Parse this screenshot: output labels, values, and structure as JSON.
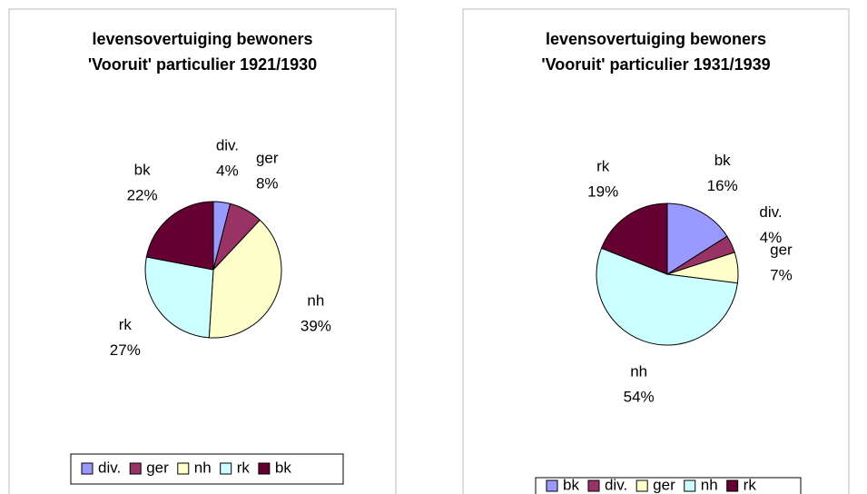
{
  "chart_data": [
    {
      "type": "pie",
      "title": [
        "levensovertuiging bewoners",
        "'Vooruit' particulier 1921/1930"
      ],
      "categories": [
        "div.",
        "ger",
        "nh",
        "rk",
        "bk"
      ],
      "values": [
        4,
        8,
        39,
        27,
        22
      ],
      "value_labels": [
        "4%",
        "8%",
        "39%",
        "27%",
        "22%"
      ],
      "colors": [
        "#9999ff",
        "#993366",
        "#ffffcc",
        "#ccffff",
        "#660033"
      ],
      "legend": "bottom"
    },
    {
      "type": "pie",
      "title": [
        "levensovertuiging bewoners",
        "'Vooruit' particulier 1931/1939"
      ],
      "categories": [
        "bk",
        "div.",
        "ger",
        "nh",
        "rk"
      ],
      "values": [
        16,
        4,
        7,
        54,
        19
      ],
      "value_labels": [
        "16%",
        "4%",
        "7%",
        "54%",
        "19%"
      ],
      "colors": [
        "#9999ff",
        "#993366",
        "#ffffcc",
        "#ccffff",
        "#660033"
      ],
      "legend": "bottom"
    }
  ]
}
